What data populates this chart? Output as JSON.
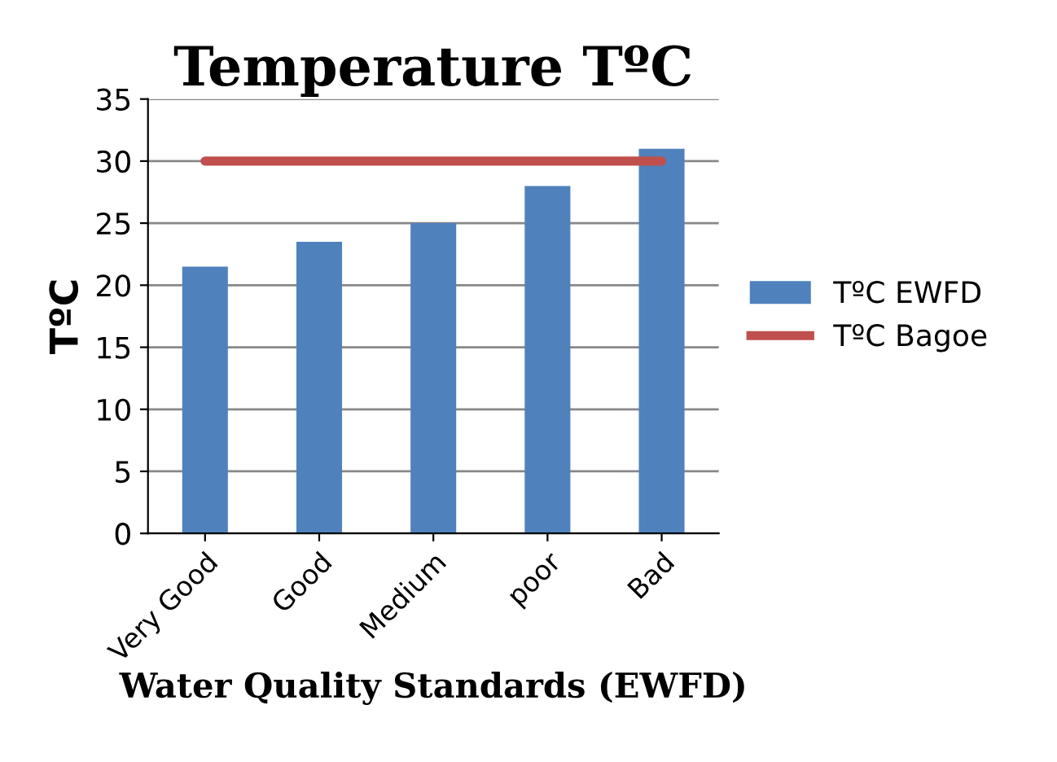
{
  "chart_data": {
    "type": "bar",
    "title": "Temperature TºC",
    "xlabel": "Water Quality Standards (EWFD)",
    "ylabel": "TºC",
    "categories": [
      "Very Good",
      "Good",
      "Medium",
      "poor",
      "Bad"
    ],
    "series": [
      {
        "name": "TºC EWFD",
        "color": "#4f81bd",
        "values": [
          21.5,
          23.5,
          25,
          28,
          31
        ]
      },
      {
        "name": "TºC Bagoe",
        "type": "line",
        "color": "#c0504d",
        "values": [
          30,
          30,
          30,
          30,
          30
        ]
      }
    ],
    "ylim": [
      0,
      35
    ],
    "yticks": [
      0,
      5,
      10,
      15,
      20,
      25,
      30,
      35
    ],
    "grid": "y",
    "legend": "right",
    "marker": "none",
    "line_style": "solid"
  }
}
